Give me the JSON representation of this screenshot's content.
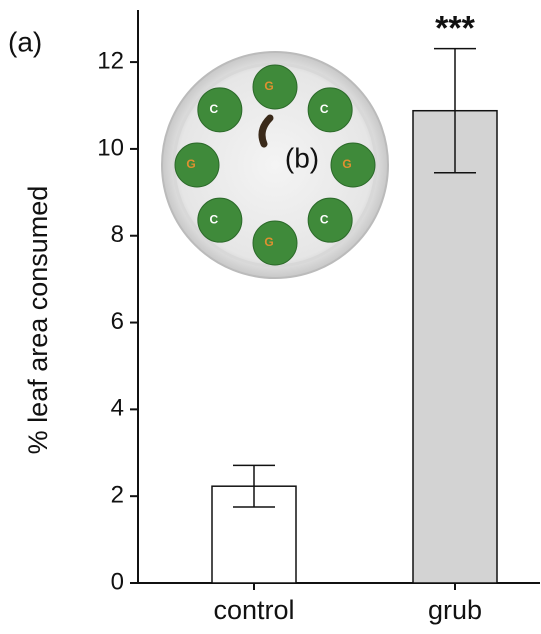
{
  "chart_data": {
    "type": "bar",
    "panel_label": "(a)",
    "y_label": "% leaf area consumed",
    "categories": [
      "control",
      "grub"
    ],
    "values": [
      2.23,
      10.88
    ],
    "errors": [
      0.48,
      1.43
    ],
    "colors": [
      "#ffffff",
      "#d3d3d3"
    ],
    "significance": [
      null,
      "***"
    ],
    "ylim": [
      0,
      13.2
    ],
    "yticks": [
      0,
      2,
      4,
      6,
      8,
      10,
      12
    ]
  },
  "inset": {
    "label": "(b)",
    "leaf_labels": [
      "G",
      "C",
      "G",
      "C",
      "G",
      "C",
      "G",
      "C"
    ]
  }
}
